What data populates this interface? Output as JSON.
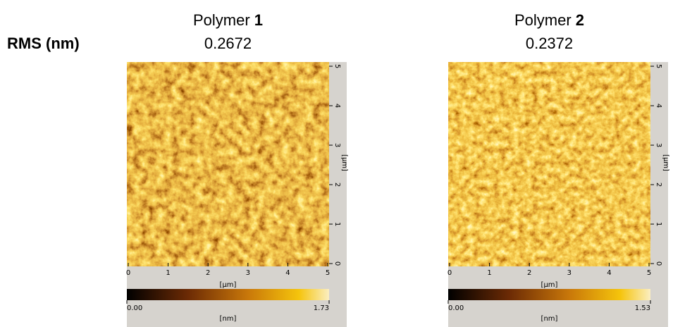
{
  "row_label": "RMS (nm)",
  "panels": [
    {
      "title": "Polymer",
      "number": "1",
      "rms": "0.2672",
      "xticks": [
        0,
        1,
        2,
        3,
        4,
        5
      ],
      "yticks": [
        0,
        1,
        2,
        3,
        4,
        5
      ],
      "x_unit": "[µm]",
      "y_unit": "[µm]",
      "colorbar": {
        "min": "0.00",
        "max": "1.73",
        "unit": "[nm]"
      }
    },
    {
      "title": "Polymer",
      "number": "2",
      "rms": "0.2372",
      "xticks": [
        0,
        1,
        2,
        3,
        4,
        5
      ],
      "yticks": [
        0,
        1,
        2,
        3,
        4,
        5
      ],
      "x_unit": "[µm]",
      "y_unit": "[µm]",
      "colorbar": {
        "min": "0.00",
        "max": "1.53",
        "unit": "[nm]"
      }
    }
  ]
}
